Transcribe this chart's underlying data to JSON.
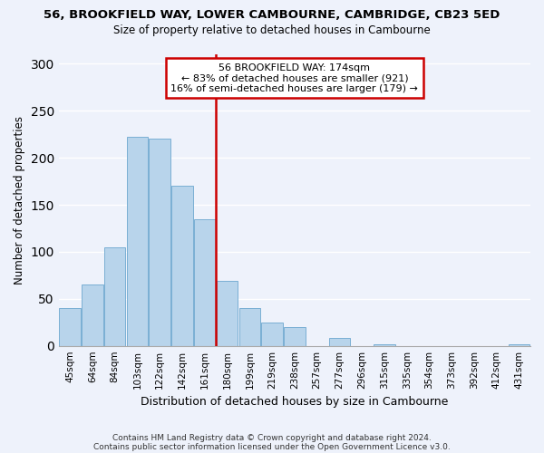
{
  "title": "56, BROOKFIELD WAY, LOWER CAMBOURNE, CAMBRIDGE, CB23 5ED",
  "subtitle": "Size of property relative to detached houses in Cambourne",
  "xlabel": "Distribution of detached houses by size in Cambourne",
  "ylabel": "Number of detached properties",
  "footer_line1": "Contains HM Land Registry data © Crown copyright and database right 2024.",
  "footer_line2": "Contains public sector information licensed under the Open Government Licence v3.0.",
  "categories": [
    "45sqm",
    "64sqm",
    "84sqm",
    "103sqm",
    "122sqm",
    "142sqm",
    "161sqm",
    "180sqm",
    "199sqm",
    "219sqm",
    "238sqm",
    "257sqm",
    "277sqm",
    "296sqm",
    "315sqm",
    "335sqm",
    "354sqm",
    "373sqm",
    "392sqm",
    "412sqm",
    "431sqm"
  ],
  "values": [
    40,
    65,
    105,
    222,
    220,
    170,
    135,
    69,
    40,
    25,
    20,
    0,
    8,
    0,
    2,
    0,
    0,
    0,
    0,
    0,
    2
  ],
  "bar_color": "#b8d4eb",
  "bar_edge_color": "#7aafd4",
  "ref_line_color": "#cc0000",
  "annotation_title": "56 BROOKFIELD WAY: 174sqm",
  "annotation_line1": "← 83% of detached houses are smaller (921)",
  "annotation_line2": "16% of semi-detached houses are larger (179) →",
  "annotation_box_facecolor": "#ffffff",
  "annotation_box_edgecolor": "#cc0000",
  "ylim": [
    0,
    310
  ],
  "yticks": [
    0,
    50,
    100,
    150,
    200,
    250,
    300
  ],
  "background_color": "#eef2fb"
}
